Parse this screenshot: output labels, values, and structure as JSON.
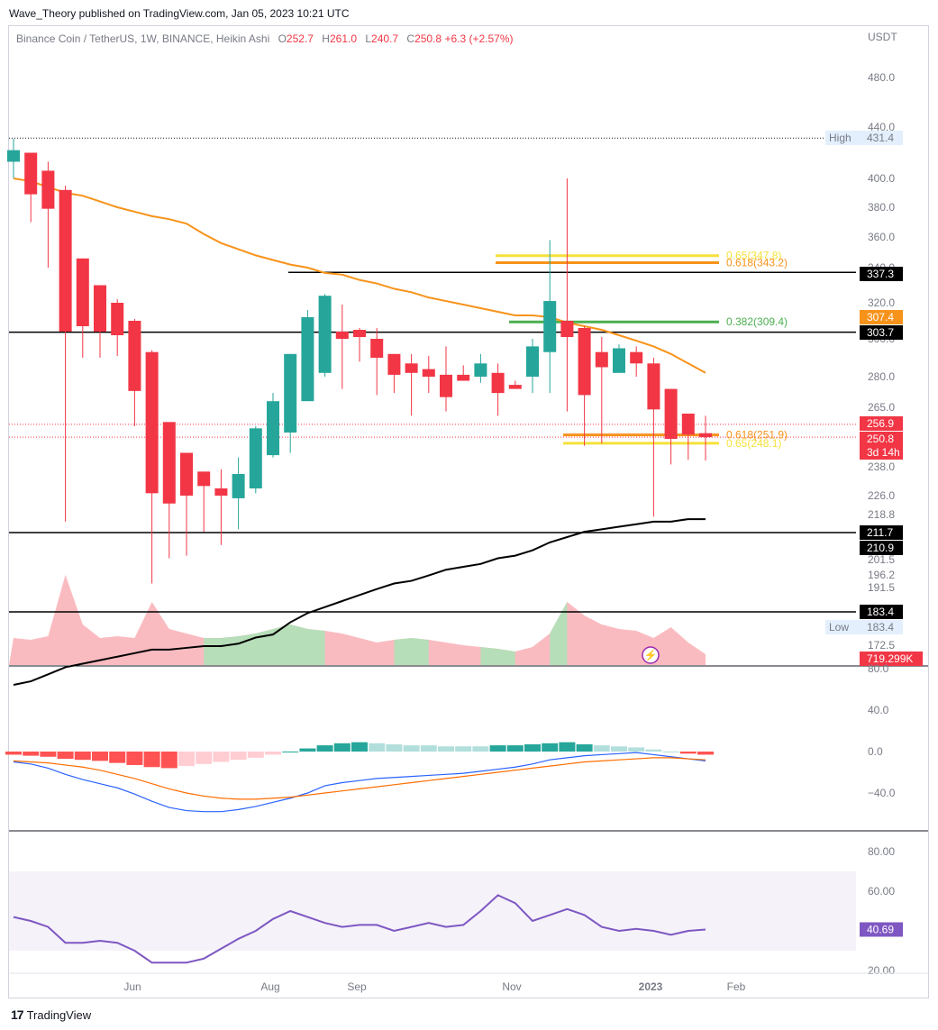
{
  "header": {
    "published": "Wave_Theory published on TradingView.com, Jan 05, 2023 10:21 UTC"
  },
  "legend": {
    "symbol": "Binance Coin / TetherUS, 1W, BINANCE, Heikin Ashi",
    "o_label": "O",
    "o": "252.7",
    "h_label": "H",
    "h": "261.0",
    "l_label": "L",
    "l": "240.7",
    "c_label": "C",
    "c": "250.8",
    "change": "+6.3 (+2.57%)"
  },
  "footer": {
    "brand": "TradingView",
    "logo": "17"
  },
  "colors": {
    "up": "#26a69a",
    "down": "#f23645",
    "ema50": "#f7931a",
    "ema200": "#000000",
    "macd": "#2962ff",
    "signal": "#ff6d00",
    "rsi": "#7e57c2",
    "fib_yellow": "#f5e13b",
    "fib_orange": "#f7931a",
    "fib_green": "#4caf50",
    "vol_up": "#b2dfb7",
    "vol_down": "#f9b4b9"
  },
  "chart_data": {
    "type": "candlestick",
    "x_axis": {
      "labels": [
        "Jun",
        "Aug",
        "Sep",
        "Nov",
        "2023",
        "Feb"
      ]
    },
    "price_axis": {
      "unit": "USDT",
      "ticks": [
        "480.0",
        "440.0",
        "400.0",
        "380.0",
        "360.0",
        "340.0",
        "320.0",
        "300.0",
        "280.0",
        "265.0",
        "250.0",
        "238.0",
        "226.0",
        "218.8",
        "211.7",
        "201.5",
        "196.2",
        "191.5",
        "183.4",
        "172.5"
      ]
    },
    "candles": [
      {
        "o": 413,
        "h": 431,
        "l": 400,
        "c": 422
      },
      {
        "o": 420,
        "h": 420,
        "l": 370,
        "c": 389
      },
      {
        "o": 406,
        "h": 413,
        "l": 340,
        "c": 379
      },
      {
        "o": 392,
        "h": 395,
        "l": 216,
        "c": 304
      },
      {
        "o": 346,
        "h": 346,
        "l": 290,
        "c": 307
      },
      {
        "o": 330,
        "h": 330,
        "l": 290,
        "c": 304
      },
      {
        "o": 320,
        "h": 322,
        "l": 291,
        "c": 302
      },
      {
        "o": 310,
        "h": 311,
        "l": 256,
        "c": 273
      },
      {
        "o": 293,
        "h": 294,
        "l": 193,
        "c": 227
      },
      {
        "o": 258,
        "h": 258,
        "l": 202,
        "c": 223
      },
      {
        "o": 244,
        "h": 244,
        "l": 203,
        "c": 226
      },
      {
        "o": 236,
        "h": 236,
        "l": 212,
        "c": 230
      },
      {
        "o": 229,
        "h": 237,
        "l": 207,
        "c": 226
      },
      {
        "o": 225,
        "h": 242,
        "l": 213,
        "c": 235
      },
      {
        "o": 229,
        "h": 256,
        "l": 227,
        "c": 255
      },
      {
        "o": 243,
        "h": 272,
        "l": 242,
        "c": 268
      },
      {
        "o": 253,
        "h": 292,
        "l": 244,
        "c": 292
      },
      {
        "o": 268,
        "h": 316,
        "l": 269,
        "c": 312
      },
      {
        "o": 282,
        "h": 325,
        "l": 280,
        "c": 324
      },
      {
        "o": 304,
        "h": 319,
        "l": 274,
        "c": 300
      },
      {
        "o": 305,
        "h": 306,
        "l": 288,
        "c": 301
      },
      {
        "o": 300,
        "h": 306,
        "l": 271,
        "c": 290
      },
      {
        "o": 292,
        "h": 292,
        "l": 272,
        "c": 281
      },
      {
        "o": 287,
        "h": 292,
        "l": 261,
        "c": 282
      },
      {
        "o": 284,
        "h": 291,
        "l": 272,
        "c": 280
      },
      {
        "o": 281,
        "h": 296,
        "l": 263,
        "c": 270
      },
      {
        "o": 281,
        "h": 286,
        "l": 278,
        "c": 278
      },
      {
        "o": 280,
        "h": 292,
        "l": 277,
        "c": 287
      },
      {
        "o": 282,
        "h": 287,
        "l": 261,
        "c": 272
      },
      {
        "o": 276,
        "h": 278,
        "l": 275,
        "c": 274
      },
      {
        "o": 280,
        "h": 300,
        "l": 272,
        "c": 296
      },
      {
        "o": 293,
        "h": 358,
        "l": 272,
        "c": 321
      },
      {
        "o": 310,
        "h": 400,
        "l": 263,
        "c": 301
      },
      {
        "o": 306,
        "h": 307,
        "l": 247,
        "c": 271
      },
      {
        "o": 293,
        "h": 301,
        "l": 248,
        "c": 285
      },
      {
        "o": 282,
        "h": 297,
        "l": 283,
        "c": 295
      },
      {
        "o": 293,
        "h": 296,
        "l": 280,
        "c": 287
      },
      {
        "o": 287,
        "h": 290,
        "l": 218,
        "c": 264
      },
      {
        "o": 274,
        "h": 274,
        "l": 239,
        "c": 250
      },
      {
        "o": 262,
        "h": 261,
        "l": 241,
        "c": 252
      },
      {
        "o": 252.7,
        "h": 261,
        "l": 240.7,
        "c": 250.8
      }
    ],
    "ema_orange": [
      400,
      398,
      394,
      390,
      388,
      384,
      380,
      377,
      374,
      372,
      369,
      362,
      356,
      352,
      348,
      345,
      342,
      340,
      337,
      336,
      333,
      331,
      328,
      326,
      323,
      321,
      319,
      317,
      315,
      313,
      313,
      312,
      309,
      307,
      305,
      302,
      299,
      296,
      292,
      287,
      282
    ],
    "ema_black": [
      150,
      152,
      156,
      160,
      162,
      164,
      166,
      168,
      170,
      170,
      171,
      172,
      172,
      173,
      175,
      176,
      180,
      183,
      185,
      187,
      189,
      191,
      193,
      194,
      196,
      198,
      199,
      200,
      202,
      203,
      205,
      208,
      210,
      212,
      213,
      214,
      215,
      216,
      216,
      217,
      217
    ],
    "fibonacci": [
      {
        "label": "0.65(347.8)",
        "value": 347.8,
        "color": "fib_yellow"
      },
      {
        "label": "0.618(343.2)",
        "value": 343.2,
        "color": "fib_orange"
      },
      {
        "label": "0.382(309.4)",
        "value": 309.4,
        "color": "fib_green"
      },
      {
        "label": "0.618(251.9)",
        "value": 251.9,
        "color": "fib_orange"
      },
      {
        "label": "0.65(248.1)",
        "value": 248.1,
        "color": "fib_yellow"
      }
    ],
    "horizontal_lines": [
      337.3,
      303.7,
      211.7,
      183.4
    ],
    "price_badges": [
      {
        "text": "High",
        "value": "431.4",
        "kind": "light"
      },
      {
        "text": "",
        "value": "337.3",
        "kind": "black"
      },
      {
        "text": "",
        "value": "307.4",
        "kind": "orange"
      },
      {
        "text": "",
        "value": "303.7",
        "kind": "black"
      },
      {
        "text": "",
        "value": "256.9",
        "kind": "red"
      },
      {
        "text": "",
        "value": "250.8",
        "kind": "red"
      },
      {
        "text": "",
        "value": "3d 14h",
        "kind": "red"
      },
      {
        "text": "",
        "value": "211.7",
        "kind": "black"
      },
      {
        "text": "",
        "value": "210.9",
        "kind": "black"
      },
      {
        "text": "",
        "value": "183.4",
        "kind": "black"
      },
      {
        "text": "Low",
        "value": "183.4",
        "kind": "light"
      },
      {
        "text": "",
        "value": "719.299K",
        "kind": "red"
      }
    ],
    "volume": [
      0.3,
      0.28,
      0.32,
      1.0,
      0.45,
      0.3,
      0.32,
      0.3,
      0.7,
      0.4,
      0.35,
      0.3,
      0.3,
      0.32,
      0.35,
      0.4,
      0.45,
      0.4,
      0.38,
      0.35,
      0.3,
      0.25,
      0.28,
      0.3,
      0.28,
      0.25,
      0.22,
      0.2,
      0.18,
      0.15,
      0.2,
      0.35,
      0.7,
      0.55,
      0.45,
      0.4,
      0.38,
      0.3,
      0.42,
      0.25,
      0.12
    ],
    "macd_panel": {
      "ticks": [
        "80.0",
        "40.0",
        "0.0",
        "−40.0"
      ],
      "histogram": [
        -3,
        -4,
        -5,
        -7,
        -8,
        -9,
        -11,
        -13,
        -15,
        -16,
        -14,
        -12,
        -10,
        -8,
        -6,
        -3,
        0,
        3,
        6,
        8,
        9,
        8,
        7,
        6,
        6,
        5,
        5,
        5,
        6,
        6,
        7,
        8,
        9,
        7,
        6,
        5,
        4,
        2,
        0,
        -2,
        -3
      ],
      "macd": [
        -10,
        -12,
        -16,
        -22,
        -27,
        -31,
        -35,
        -41,
        -48,
        -54,
        -57,
        -58,
        -58,
        -56,
        -53,
        -49,
        -45,
        -40,
        -33,
        -30,
        -28,
        -26,
        -25,
        -24,
        -23,
        -22,
        -21,
        -19,
        -17,
        -15,
        -12,
        -8,
        -6,
        -4,
        -3,
        -2,
        -1,
        -3,
        -5,
        -7,
        -9
      ],
      "signal": [
        -9,
        -10,
        -11,
        -13,
        -15,
        -18,
        -22,
        -26,
        -31,
        -36,
        -40,
        -43,
        -45,
        -46,
        -46,
        -45,
        -44,
        -42,
        -40,
        -38,
        -36,
        -34,
        -32,
        -30,
        -28,
        -26,
        -24,
        -22,
        -20,
        -18,
        -16,
        -14,
        -12,
        -10,
        -9,
        -8,
        -7,
        -6,
        -6,
        -7,
        -8
      ]
    },
    "rsi_panel": {
      "ticks": [
        "80.00",
        "60.00",
        "20.00"
      ],
      "band": [
        30,
        70
      ],
      "value_badge": "40.69",
      "values": [
        47,
        45,
        42,
        34,
        34,
        35,
        34,
        30,
        24,
        24,
        24,
        26,
        31,
        36,
        40,
        46,
        50,
        47,
        44,
        42,
        43,
        43,
        40,
        42,
        44,
        42,
        43,
        50,
        58,
        54,
        45,
        48,
        51,
        48,
        42,
        40,
        41,
        40,
        38,
        40,
        40.69
      ]
    }
  }
}
